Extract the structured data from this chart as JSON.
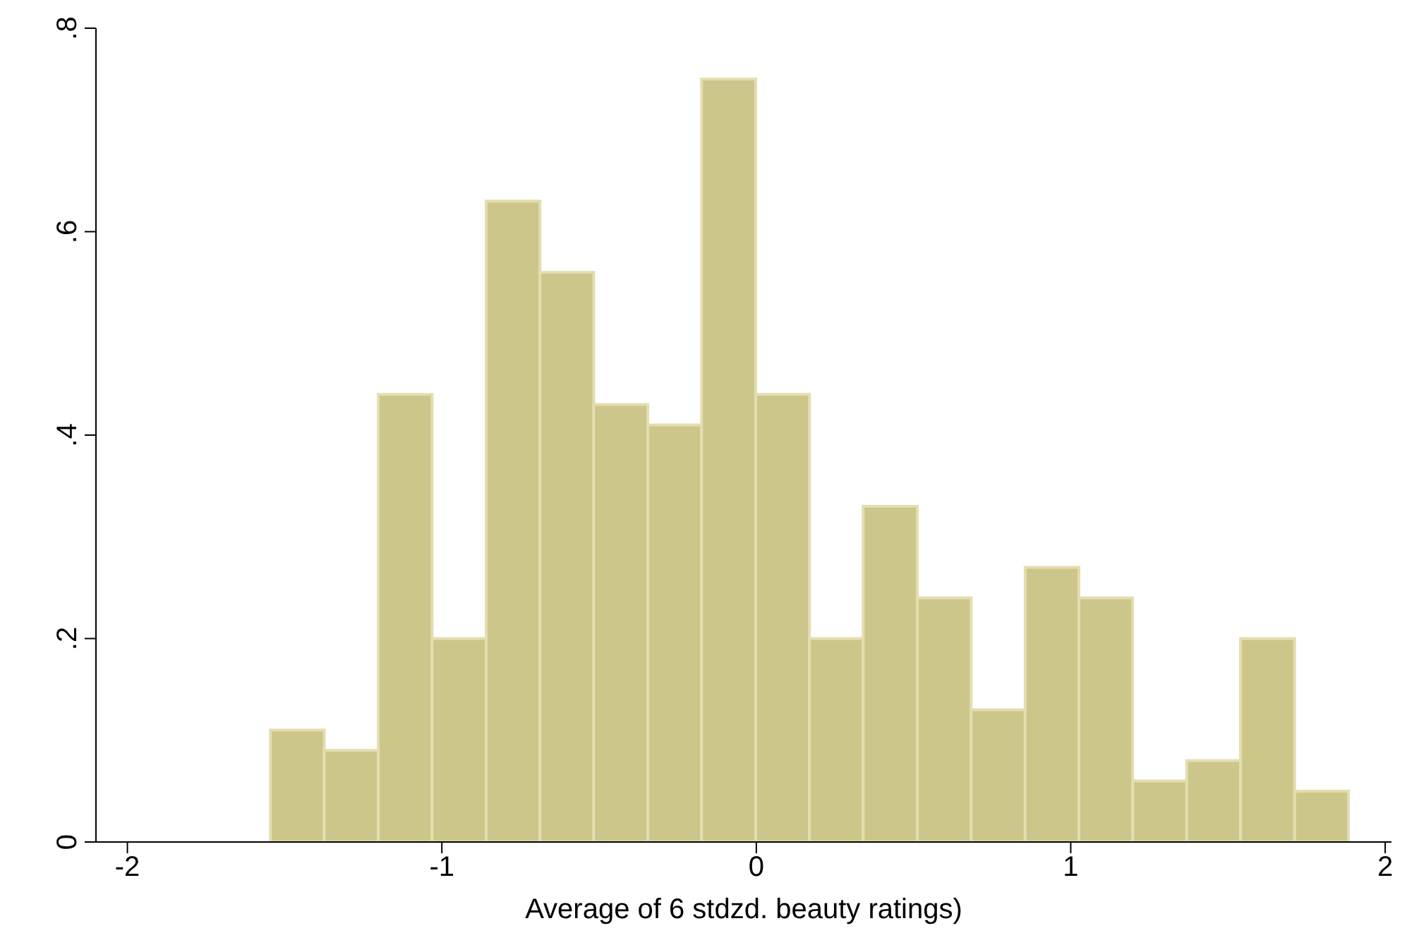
{
  "chart_data": {
    "type": "histogram",
    "xlabel": "Average of 6 stdzd. beauty ratings)",
    "bins": [
      -1.545,
      -1.374,
      -1.202,
      -1.031,
      -0.859,
      -0.688,
      -0.517,
      -0.345,
      -0.174,
      -0.002,
      0.169,
      0.34,
      0.512,
      0.683,
      0.855,
      1.026,
      1.197,
      1.369,
      1.54,
      1.712,
      1.883
    ],
    "values": [
      0.11,
      0.09,
      0.44,
      0.2,
      0.63,
      0.56,
      0.43,
      0.41,
      0.75,
      0.44,
      0.2,
      0.33,
      0.24,
      0.13,
      0.27,
      0.24,
      0.06,
      0.08,
      0.2,
      0.05
    ],
    "color": "#cdc68a",
    "xlim": [
      -2.1,
      2.02
    ],
    "xticks": [
      -2,
      -1,
      0,
      1,
      2
    ],
    "ylim": [
      0,
      0.8
    ],
    "yticks": [
      0,
      {
        "value": 0.2,
        "label": ".2"
      },
      {
        "value": 0.4,
        "label": ".4"
      },
      {
        "value": 0.6,
        "label": ".6"
      },
      {
        "value": 0.8,
        "label": ".8"
      }
    ],
    "grid": false,
    "legend": false
  }
}
